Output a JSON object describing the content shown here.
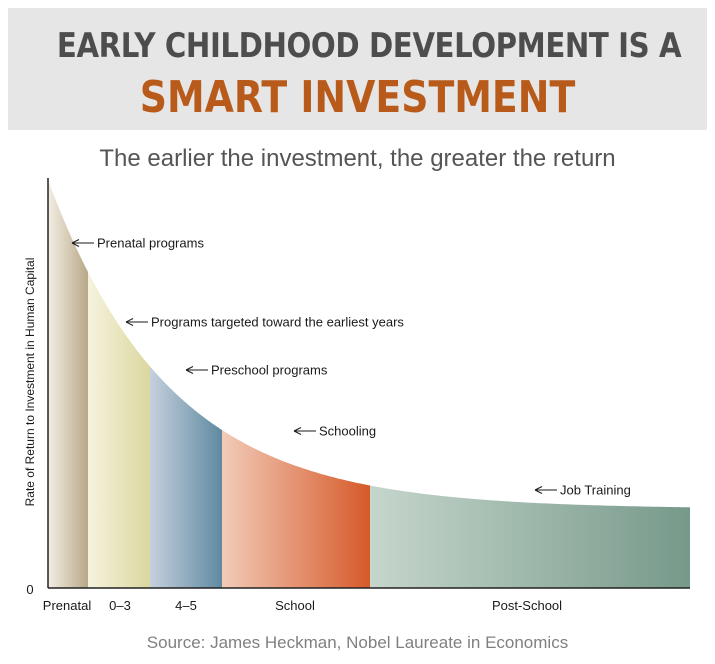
{
  "header": {
    "title_line1": "EARLY CHILDHOOD DEVELOPMENT IS A",
    "title_line2": "SMART INVESTMENT"
  },
  "footer": {
    "source": "Source: James Heckman, Nobel Laureate in Economics"
  },
  "chart_data": {
    "type": "area",
    "title": "The earlier the investment, the greater the return",
    "ylabel": "Rate of Return to Investment in Human Capital",
    "xlabel": "",
    "y_origin_label": "0",
    "categories": [
      "Prenatal",
      "0–3",
      "4–5",
      "School",
      "Post-School"
    ],
    "annotations": [
      "Prenatal programs",
      "Programs targeted toward the earliest years",
      "Preschool programs",
      "Schooling",
      "Job Training"
    ],
    "grid": false,
    "legend": "none",
    "colors": {
      "Prenatal": "#b8a888",
      "0–3": "#dcd7a0",
      "4–5": "#5f8aa0",
      "School": "#d65a2a",
      "Post-School": "#76998a"
    }
  }
}
